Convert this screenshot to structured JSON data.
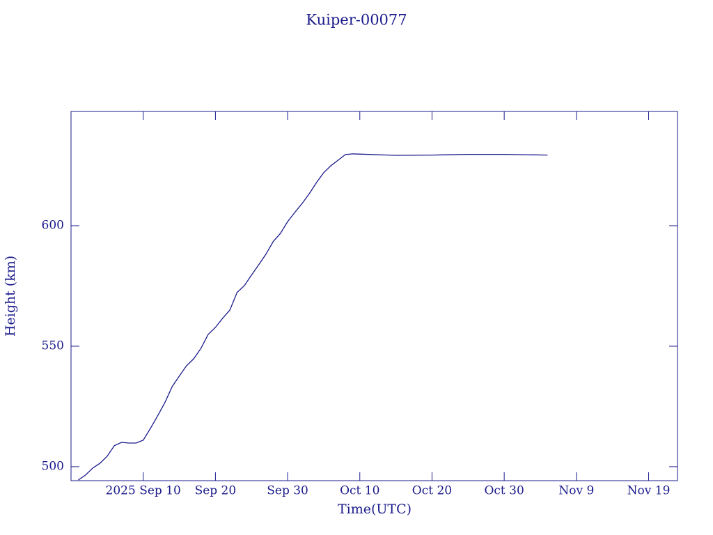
{
  "chart_data": {
    "type": "line",
    "title": "Kuiper-00077",
    "x_label": "Time(UTC)",
    "y_label": "Height (km)",
    "color": "#1a1a8c",
    "x": [
      "2025-09-01",
      "2025-09-02",
      "2025-09-03",
      "2025-09-04",
      "2025-09-05",
      "2025-09-06",
      "2025-09-07",
      "2025-09-08",
      "2025-09-09",
      "2025-09-10",
      "2025-09-11",
      "2025-09-12",
      "2025-09-13",
      "2025-09-14",
      "2025-09-15",
      "2025-09-16",
      "2025-09-17",
      "2025-09-18",
      "2025-09-19",
      "2025-09-20",
      "2025-09-21",
      "2025-09-22",
      "2025-09-23",
      "2025-09-24",
      "2025-09-25",
      "2025-09-26",
      "2025-09-27",
      "2025-09-28",
      "2025-09-29",
      "2025-09-30",
      "2025-10-01",
      "2025-10-02",
      "2025-10-03",
      "2025-10-04",
      "2025-10-05",
      "2025-10-06",
      "2025-10-07",
      "2025-10-08",
      "2025-10-09",
      "2025-10-15",
      "2025-10-20",
      "2025-10-25",
      "2025-10-30",
      "2025-11-05"
    ],
    "values": [
      494.5,
      496.5,
      499.4,
      501.4,
      504.3,
      508.7,
      510.1,
      509.8,
      509.8,
      511,
      515.9,
      521.1,
      526.6,
      533.2,
      537.6,
      541.9,
      544.8,
      549.1,
      554.9,
      557.8,
      561.6,
      565,
      572.3,
      575.1,
      579.5,
      583.8,
      588.2,
      593.4,
      596.8,
      601.7,
      605.5,
      609.2,
      613.3,
      617.9,
      622,
      624.9,
      627.2,
      629.5,
      629.8,
      629.2,
      629.3,
      629.6,
      629.6,
      629.3
    ],
    "xlim": [
      "2025-08-31",
      "2025-11-23"
    ],
    "xticks": [
      {
        "value": "2025-09-10",
        "label": "2025 Sep 10"
      },
      {
        "value": "2025-09-20",
        "label": "Sep 20"
      },
      {
        "value": "2025-09-30",
        "label": "Sep 30"
      },
      {
        "value": "2025-10-10",
        "label": "Oct 10"
      },
      {
        "value": "2025-10-20",
        "label": "Oct 20"
      },
      {
        "value": "2025-10-30",
        "label": "Oct 30"
      },
      {
        "value": "2025-11-09",
        "label": "Nov 9"
      },
      {
        "value": "2025-11-19",
        "label": "Nov 19"
      }
    ],
    "ylim": [
      494.2,
      647.4
    ],
    "yticks": [
      500,
      550,
      600
    ]
  }
}
